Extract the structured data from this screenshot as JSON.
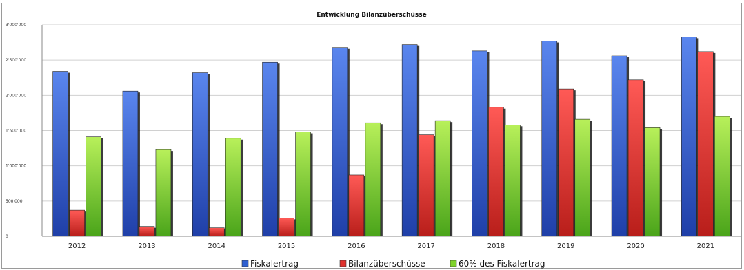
{
  "chart_data": {
    "type": "bar",
    "title": "Entwicklung Bilanzüberschüsse",
    "categories": [
      "2012",
      "2013",
      "2014",
      "2015",
      "2016",
      "2017",
      "2018",
      "2019",
      "2020",
      "2021"
    ],
    "ylim": [
      0,
      3000000
    ],
    "yticks": [
      0,
      500000,
      1000000,
      1500000,
      2000000,
      2500000,
      3000000
    ],
    "ytick_labels": [
      "0",
      "500'000",
      "1'000'000",
      "1'500'000",
      "2'000'000",
      "2'500'000",
      "3'000'000"
    ],
    "grid": true,
    "legend_position": "bottom",
    "series": [
      {
        "name": "Fiskalertrag",
        "color": "#2f5fd0",
        "values": [
          2340000,
          2060000,
          2320000,
          2470000,
          2680000,
          2720000,
          2630000,
          2770000,
          2560000,
          2830000
        ]
      },
      {
        "name": "Bilanzüberschüsse",
        "color": "#e0302c",
        "values": [
          370000,
          140000,
          120000,
          260000,
          870000,
          1440000,
          1830000,
          2090000,
          2220000,
          2620000
        ]
      },
      {
        "name": "60% des Fiskalertrag",
        "color": "#7fd22a",
        "values": [
          1410000,
          1230000,
          1390000,
          1480000,
          1610000,
          1640000,
          1580000,
          1660000,
          1540000,
          1700000
        ]
      }
    ]
  }
}
